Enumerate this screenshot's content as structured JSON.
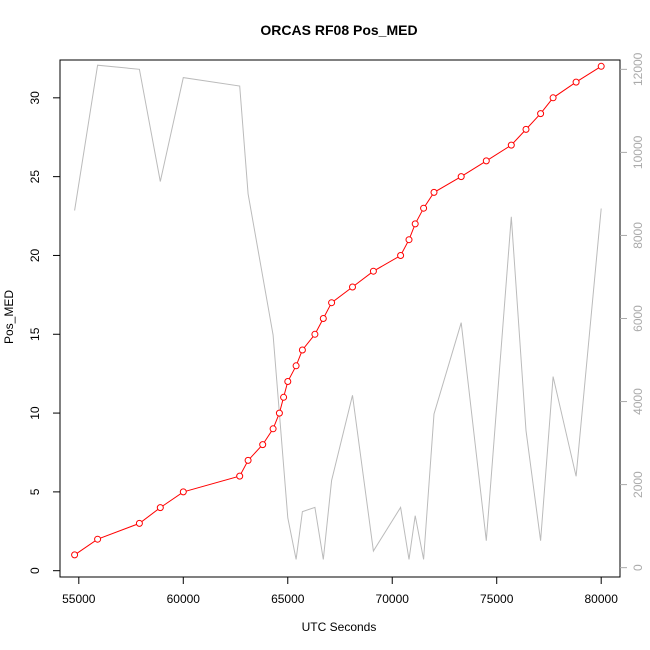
{
  "chart_data": {
    "type": "line",
    "title": "ORCAS RF08 Pos_MED",
    "xlabel": "UTC Seconds",
    "ylabel": "Pos_MED",
    "xlim": [
      54100,
      80900
    ],
    "ylim": [
      -0.4,
      32.4
    ],
    "y2lim": [
      -225,
      12225
    ],
    "x_ticks": [
      55000,
      60000,
      65000,
      70000,
      75000,
      80000
    ],
    "y_ticks": [
      0,
      5,
      10,
      15,
      20,
      25,
      30
    ],
    "y2_ticks": [
      0,
      2000,
      4000,
      6000,
      8000,
      10000,
      12000
    ],
    "grid": false,
    "series": [
      {
        "axis": "left",
        "color": "#ff0000",
        "marker": "circle",
        "x": [
          54800,
          55900,
          57900,
          58900,
          60000,
          62700,
          63100,
          63800,
          64300,
          64600,
          64800,
          65000,
          65400,
          65700,
          66300,
          66700,
          67100,
          68100,
          69100,
          70400,
          70800,
          71100,
          71500,
          72000,
          73300,
          74500,
          75700,
          76400,
          77100,
          77700,
          78800,
          80000
        ],
        "y": [
          1,
          2,
          3,
          4,
          5,
          6,
          7,
          8,
          9,
          10,
          11,
          12,
          13,
          14,
          15,
          16,
          17,
          18,
          19,
          20,
          21,
          22,
          23,
          24,
          25,
          26,
          27,
          28,
          29,
          30,
          31,
          32
        ]
      },
      {
        "axis": "right",
        "color": "#bbbbbb",
        "marker": "none",
        "x": [
          54800,
          55900,
          57900,
          58900,
          60000,
          62700,
          63100,
          64300,
          65000,
          65400,
          65700,
          66300,
          66700,
          67100,
          68100,
          69100,
          70400,
          70800,
          71100,
          71500,
          72000,
          73300,
          74500,
          75700,
          76400,
          77100,
          77700,
          78800,
          80000
        ],
        "y": [
          8600,
          12100,
          12000,
          9300,
          11800,
          11600,
          9000,
          5600,
          1200,
          200,
          1350,
          1450,
          200,
          2100,
          4150,
          400,
          1450,
          200,
          1250,
          200,
          3700,
          5900,
          650,
          8450,
          3300,
          650,
          4600,
          2200,
          8650
        ]
      }
    ]
  }
}
